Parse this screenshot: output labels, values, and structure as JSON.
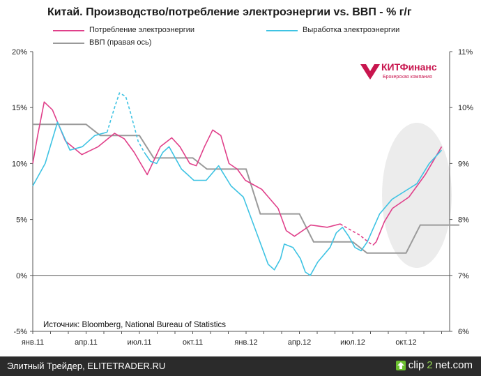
{
  "header": {
    "title": "Китай. Производство/потребление электроэнергии vs. ВВП - % г/г"
  },
  "legend": {
    "consumption": "Потребление электроэнергии",
    "production": "Выработка электроэнергии",
    "gdp": "ВВП (правая ось)"
  },
  "source": "Источник: Bloomberg, National Bureau of Statistics",
  "logo": {
    "name": "КИТФинанс",
    "tagline": "Брокерская компания"
  },
  "footer": {
    "left": "Элитный Трейдер, ELITETRADER.RU",
    "brand_pre": "clip",
    "brand_mid": "2",
    "brand_post": "net.com"
  },
  "colors": {
    "consumption": "#e0408a",
    "production": "#3ec3e3",
    "gdp": "#9a9a9a",
    "highlight": "#ececec",
    "logo": "#c8154e",
    "footer_bg": "#2b2b2b"
  },
  "chart_data": {
    "type": "line",
    "x_labels": [
      "янв.11",
      "апр.11",
      "июл.11",
      "окт.11",
      "янв.12",
      "апр.12",
      "июл.12",
      "окт.12"
    ],
    "x_label_months": [
      0,
      3,
      6,
      9,
      12,
      15,
      18,
      21
    ],
    "left_axis": {
      "ylim": [
        -5,
        20
      ],
      "ticks": [
        -5,
        0,
        5,
        10,
        15,
        20
      ],
      "tick_labels": [
        "-5%",
        "0%",
        "5%",
        "10%",
        "15%",
        "20%"
      ]
    },
    "right_axis": {
      "ylim": [
        6,
        11
      ],
      "ticks": [
        6,
        7,
        8,
        9,
        10,
        11
      ],
      "tick_labels": [
        "6%",
        "7%",
        "8%",
        "9%",
        "10%",
        "11%"
      ]
    },
    "series": [
      {
        "name": "Потребление электроэнергии",
        "key": "consumption",
        "axis": "left",
        "points": [
          [
            0,
            10.0
          ],
          [
            0.3,
            12.5
          ],
          [
            0.7,
            15.5
          ],
          [
            1.2,
            14.8
          ],
          [
            2,
            12.0
          ],
          [
            3,
            10.8
          ],
          [
            4,
            11.5
          ],
          [
            5,
            12.7
          ],
          [
            5.6,
            12.2
          ],
          [
            6.2,
            11.0
          ],
          [
            7,
            9.0
          ],
          [
            7.8,
            11.5
          ],
          [
            8.5,
            12.3
          ],
          [
            9,
            11.5
          ],
          [
            9.6,
            10.0
          ],
          [
            10,
            9.8
          ],
          [
            10.5,
            11.5
          ],
          [
            11,
            13.0
          ],
          [
            11.5,
            12.5
          ],
          [
            12,
            10.0
          ],
          [
            12.5,
            9.5
          ],
          [
            13,
            8.5
          ],
          [
            14,
            7.7
          ],
          [
            15,
            6.0
          ],
          [
            15.5,
            4.0
          ],
          [
            16,
            3.5
          ],
          [
            17,
            4.5
          ],
          [
            18,
            4.3
          ],
          [
            18.8,
            4.6
          ]
        ],
        "interpolated_points": [
          [
            18.8,
            4.6
          ],
          [
            19.5,
            4.0
          ],
          [
            20,
            3.6
          ],
          [
            20.5,
            3.0
          ],
          [
            20.8,
            2.7
          ]
        ],
        "points_after": [
          [
            20.8,
            2.7
          ],
          [
            21,
            3.0
          ],
          [
            21.5,
            4.8
          ],
          [
            22,
            6.0
          ],
          [
            23,
            7.0
          ],
          [
            24,
            9.0
          ],
          [
            25,
            11.5
          ]
        ]
      },
      {
        "name": "Выработка электроэнергии",
        "key": "production",
        "axis": "left",
        "points": [
          [
            0,
            8.0
          ],
          [
            1,
            10.0
          ],
          [
            2,
            13.7
          ],
          [
            3,
            11.2
          ],
          [
            4,
            11.5
          ],
          [
            5,
            12.5
          ],
          [
            6,
            12.8
          ]
        ],
        "interpolated_points": [
          [
            6,
            12.8
          ],
          [
            6.6,
            15.0
          ],
          [
            7,
            16.3
          ],
          [
            7.5,
            16.0
          ],
          [
            7.9,
            14.5
          ],
          [
            8.5,
            12.0
          ],
          [
            9,
            11.0
          ]
        ],
        "points_after": [
          [
            9,
            11.0
          ],
          [
            9.5,
            10.2
          ],
          [
            10,
            10.0
          ],
          [
            10.5,
            11.0
          ],
          [
            11,
            11.5
          ],
          [
            11.5,
            10.5
          ],
          [
            12,
            9.5
          ],
          [
            12.5,
            9.0
          ],
          [
            13,
            8.5
          ],
          [
            14,
            8.5
          ],
          [
            15,
            9.8
          ],
          [
            16,
            8.0
          ],
          [
            17,
            7.0
          ],
          [
            17.5,
            5.5
          ],
          [
            18,
            4.0
          ],
          [
            18.5,
            2.5
          ],
          [
            19,
            1.0
          ],
          [
            19.5,
            0.5
          ],
          [
            20,
            1.5
          ],
          [
            20.3,
            2.8
          ],
          [
            21,
            2.5
          ],
          [
            21.6,
            1.5
          ],
          [
            22,
            0.3
          ],
          [
            22.4,
            0.0
          ],
          [
            23,
            1.2
          ],
          [
            24,
            2.5
          ],
          [
            24.5,
            3.8
          ],
          [
            25,
            4.3
          ],
          [
            25.5,
            3.5
          ],
          [
            26,
            2.5
          ],
          [
            26.5,
            2.2
          ],
          [
            27,
            3.0
          ],
          [
            28,
            5.5
          ],
          [
            29,
            6.8
          ],
          [
            30,
            7.5
          ],
          [
            31,
            8.2
          ],
          [
            32,
            10.0
          ],
          [
            33,
            11.2
          ]
        ]
      },
      {
        "name": "ВВП (правая ось)",
        "key": "gdp",
        "axis": "right",
        "points": [
          [
            0,
            9.7
          ],
          [
            3,
            9.7
          ],
          [
            3.8,
            9.5
          ],
          [
            6,
            9.5
          ],
          [
            6.8,
            9.1
          ],
          [
            9,
            9.1
          ],
          [
            9.8,
            8.9
          ],
          [
            12,
            8.9
          ],
          [
            12.8,
            8.1
          ],
          [
            15,
            8.1
          ],
          [
            15.8,
            7.6
          ],
          [
            18,
            7.6
          ],
          [
            18.8,
            7.4
          ],
          [
            21,
            7.4
          ],
          [
            21.8,
            7.9
          ],
          [
            24,
            7.9
          ]
        ]
      }
    ],
    "highlight_region": "last months (окт.12 onward)"
  }
}
